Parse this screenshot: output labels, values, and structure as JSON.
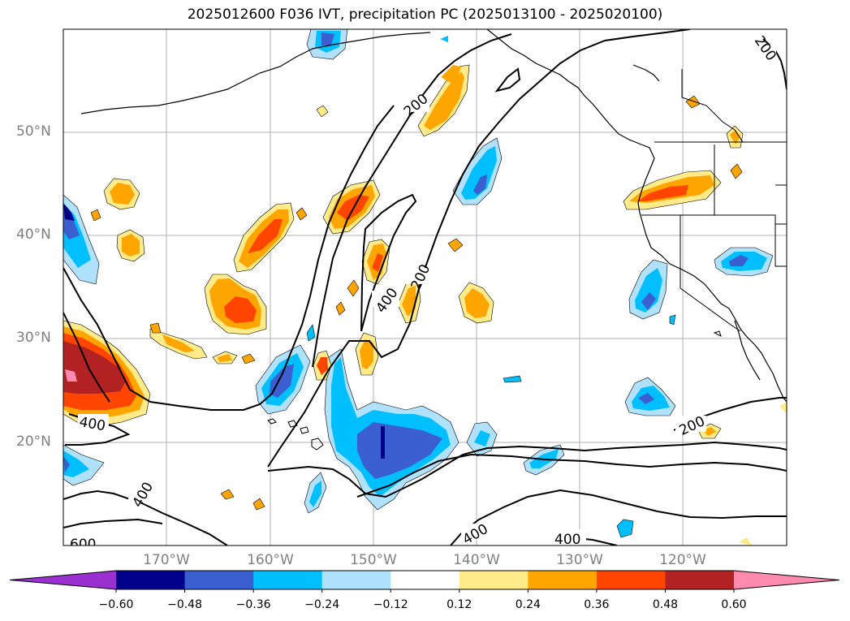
{
  "title": "2025012600 F036 IVT, precipitation PC (2025013100 - 2025020100)",
  "lat_labels": [
    "50°N",
    "40°N",
    "30°N",
    "20°N"
  ],
  "lon_labels": [
    "170°W",
    "160°W",
    "150°W",
    "140°W",
    "130°W",
    "120°W"
  ],
  "contour_labels": [
    "200",
    "200",
    "200",
    "200",
    "400",
    "400",
    "400",
    "400",
    "400",
    "600"
  ],
  "colorbar": {
    "ticks": [
      "−0.60",
      "−0.48",
      "−0.36",
      "−0.24",
      "−0.12",
      "0.12",
      "0.24",
      "0.36",
      "0.48",
      "0.60"
    ],
    "colors": [
      "#9b30d0",
      "#00008b",
      "#3b5fd0",
      "#00bfff",
      "#b0e2ff",
      "#ffffff",
      "#ffeb8a",
      "#ffa500",
      "#ff4500",
      "#b22222",
      "#ff8aaf"
    ]
  }
}
